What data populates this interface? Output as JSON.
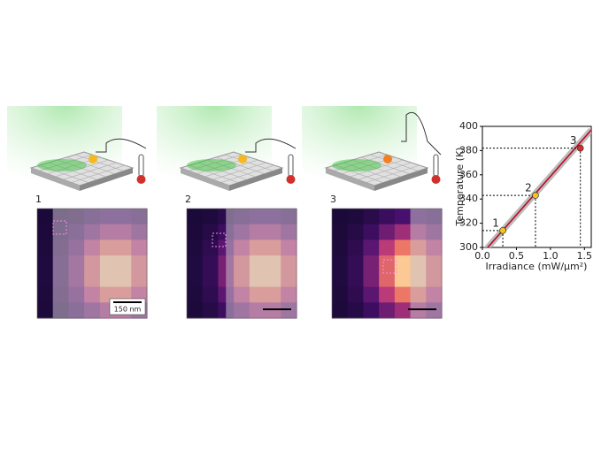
{
  "panels": [
    {
      "label": "1"
    },
    {
      "label": "2"
    },
    {
      "label": "3"
    }
  ],
  "scale_bar": "150 nm",
  "chart_data": {
    "type": "line",
    "xlabel": "Irradiance (mW/μm²)",
    "ylabel": "Temperature (K)",
    "xlim": [
      0,
      1.6
    ],
    "ylim": [
      300,
      400
    ],
    "xticks": [
      {
        "value": 0,
        "label": "0.0"
      },
      0.5,
      {
        "value": 1,
        "label": "1.0"
      },
      1.5
    ],
    "yticks": [
      300,
      320,
      340,
      360,
      380,
      400
    ],
    "series": [
      {
        "color": "#c0001a",
        "x": [
          0,
          1.6
        ],
        "values": [
          295,
          397
        ]
      }
    ],
    "points": {
      "x": [
        0.3,
        0.78,
        1.44
      ],
      "values": [
        314,
        343,
        382
      ],
      "labels": [
        "1",
        "2",
        "3"
      ],
      "colors": [
        "#f5c518",
        "#f5c518",
        "#d0312d"
      ]
    }
  }
}
